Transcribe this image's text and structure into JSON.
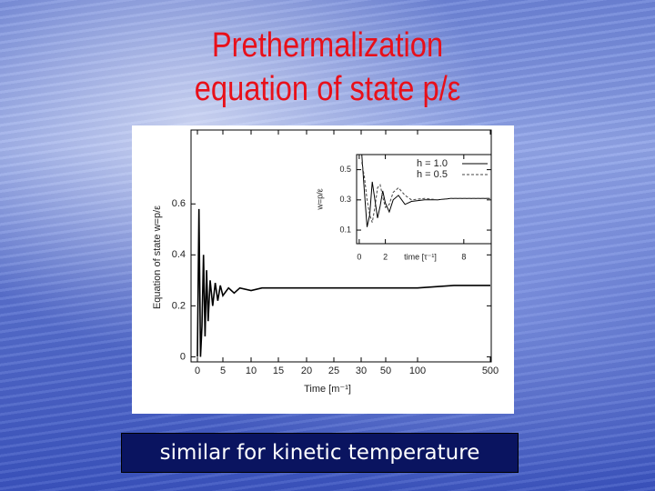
{
  "slide": {
    "title_lines": [
      "Prethermalization",
      "equation of state p/ε"
    ],
    "caption": "similar for kinetic temperature"
  },
  "chart_data": [
    {
      "type": "line",
      "x_label": "Time [m⁻¹]",
      "y_label": "Equation of state w=p/ε",
      "color": "#000000",
      "x": [
        0,
        0.3,
        0.6,
        0.9,
        1.2,
        1.5,
        1.8,
        2.1,
        2.5,
        3,
        3.5,
        4,
        4.5,
        5,
        6,
        7,
        8,
        10,
        12,
        15,
        20,
        25,
        30,
        50,
        100,
        200,
        300,
        400,
        500
      ],
      "values": [
        0.0,
        0.58,
        0.0,
        0.12,
        0.4,
        0.08,
        0.34,
        0.14,
        0.3,
        0.2,
        0.29,
        0.22,
        0.28,
        0.24,
        0.27,
        0.25,
        0.27,
        0.26,
        0.27,
        0.27,
        0.27,
        0.27,
        0.27,
        0.27,
        0.27,
        0.275,
        0.28,
        0.28,
        0.28
      ],
      "xlim": [
        0,
        500
      ],
      "ylim": [
        -0.02,
        0.89
      ],
      "xticks": [
        0,
        5,
        10,
        15,
        20,
        25,
        30,
        50,
        100,
        500
      ],
      "yticks": [
        0,
        0.2,
        0.4,
        0.6
      ]
    },
    {
      "type": "line",
      "x_label": "time [τ⁻¹]",
      "y_label": "w=p/ε",
      "series": [
        {
          "name": "h = 1.0",
          "color": "#000000",
          "dash": false,
          "x": [
            0.2,
            0.4,
            0.6,
            0.8,
            1.0,
            1.2,
            1.4,
            1.6,
            1.8,
            2.0,
            2.3,
            2.6,
            3.0,
            3.5,
            4,
            5,
            6,
            7,
            8,
            9,
            10
          ],
          "values": [
            0.6,
            0.35,
            0.12,
            0.2,
            0.42,
            0.3,
            0.18,
            0.26,
            0.36,
            0.28,
            0.22,
            0.3,
            0.33,
            0.27,
            0.29,
            0.3,
            0.3,
            0.31,
            0.31,
            0.31,
            0.31
          ]
        },
        {
          "name": "h = 0.5",
          "color": "#444444",
          "dash": true,
          "x": [
            0.2,
            0.4,
            0.6,
            0.8,
            1.0,
            1.2,
            1.4,
            1.6,
            1.8,
            2.0,
            2.3,
            2.6,
            3.0,
            3.5,
            4,
            5,
            6,
            7,
            8,
            9,
            10
          ],
          "values": [
            0.55,
            0.45,
            0.3,
            0.2,
            0.15,
            0.25,
            0.38,
            0.4,
            0.32,
            0.25,
            0.27,
            0.35,
            0.38,
            0.33,
            0.3,
            0.31,
            0.3,
            0.31,
            0.31,
            0.31,
            0.31
          ]
        }
      ],
      "xlim": [
        -0.2,
        10.1
      ],
      "ylim": [
        0.01,
        0.6
      ],
      "xticks": [
        0,
        2,
        8
      ],
      "yticks": [
        0.1,
        0.3,
        0.5
      ]
    }
  ]
}
